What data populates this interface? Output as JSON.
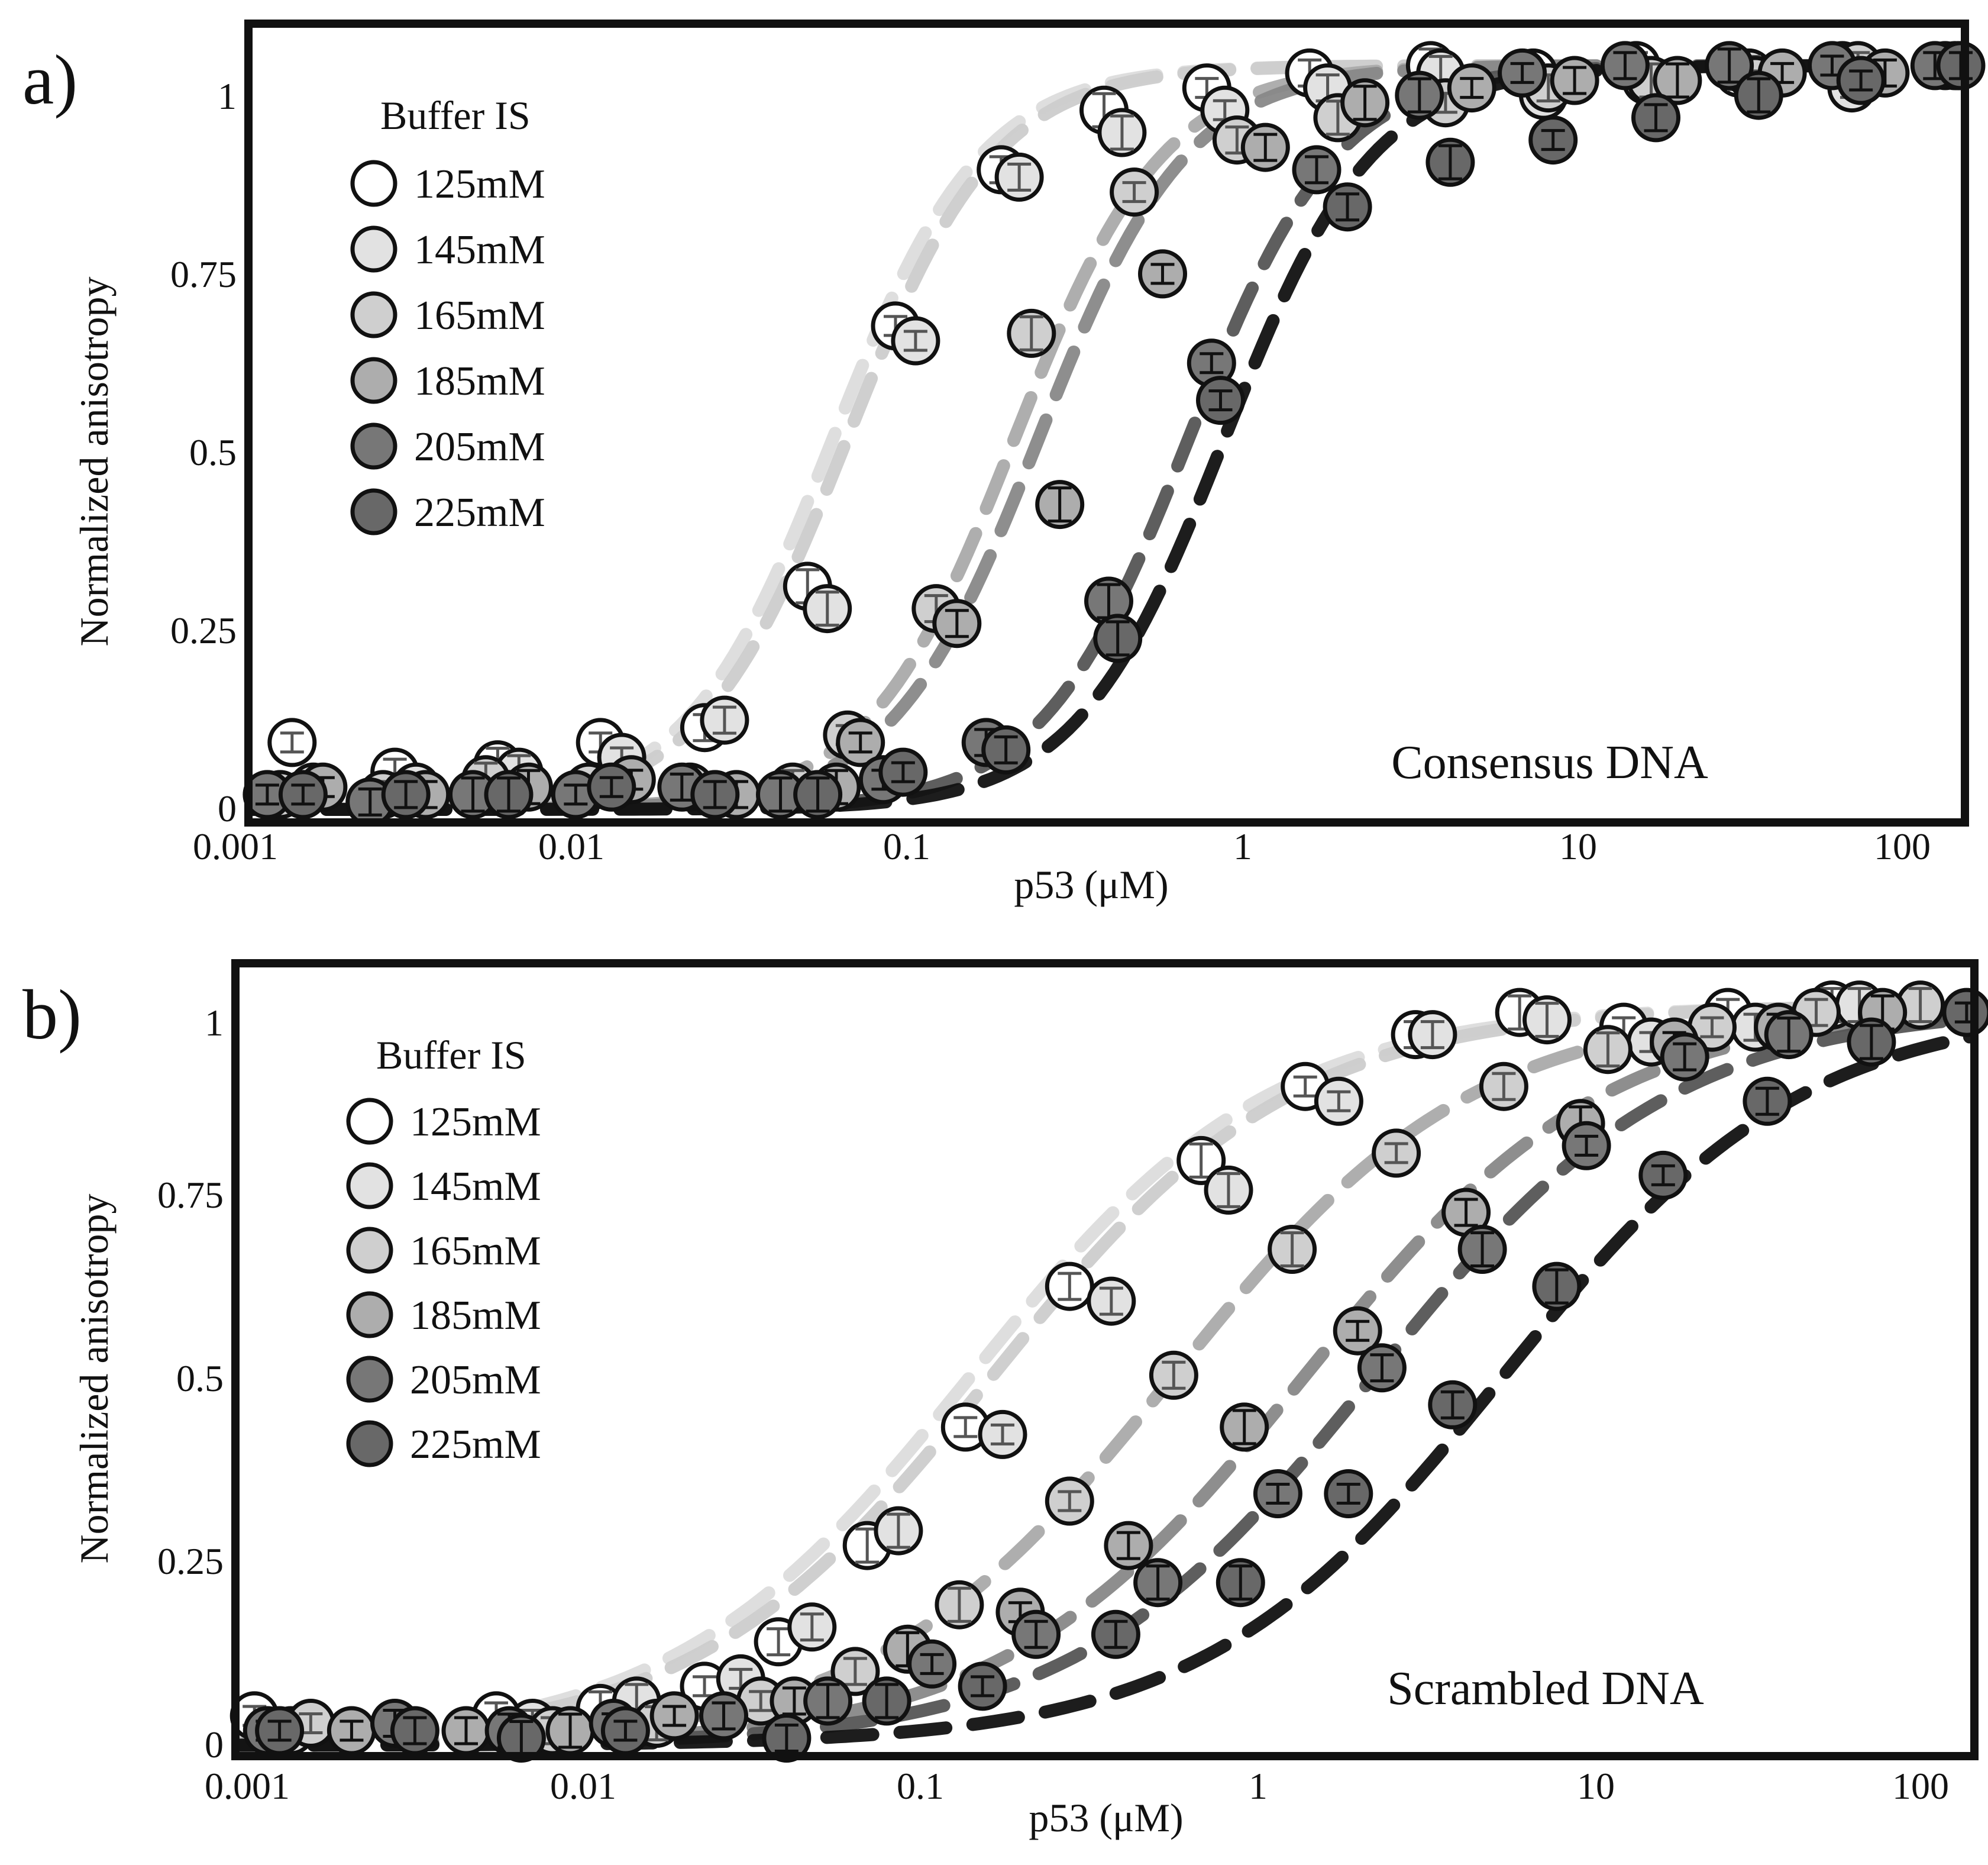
{
  "figure": {
    "panels": [
      {
        "id": "a",
        "panel_label": "a)",
        "annotation": "Consensus DNA",
        "legend_title": "Buffer IS",
        "xlabel": "p53 (μM)",
        "ylabel": "Normalized anisotropy",
        "x_ticks": [
          "0.001",
          "0.01",
          "0.1",
          "1",
          "10",
          "100"
        ],
        "y_ticks": [
          "0",
          "0.25",
          "0.5",
          "0.75",
          "1"
        ]
      },
      {
        "id": "b",
        "panel_label": "b)",
        "annotation": "Scrambled DNA",
        "legend_title": "Buffer IS",
        "xlabel": "p53 (μM)",
        "ylabel": "Normalized anisotropy",
        "x_ticks": [
          "0.001",
          "0.01",
          "0.1",
          "1",
          "10",
          "100"
        ],
        "y_ticks": [
          "0",
          "0.25",
          "0.5",
          "0.75",
          "1"
        ]
      }
    ]
  },
  "chart_data": [
    {
      "type": "scatter",
      "title": "Consensus DNA",
      "xlabel": "p53 (μM)",
      "ylabel": "Normalized anisotropy",
      "xscale": "log",
      "xlim": [
        0.001,
        100
      ],
      "ylim": [
        0,
        1.05
      ],
      "legend_title": "Buffer IS",
      "legend_position": "top-left",
      "series": [
        {
          "name": "125mM",
          "color": "#ffffff",
          "fit_color": "#dcdcdc",
          "kd": 0.05,
          "hill": 2.0,
          "x": [
            0.0013,
            0.0026,
            0.0052,
            0.0104,
            0.021,
            0.042,
            0.076,
            0.155,
            0.31,
            0.62,
            1.24,
            2.8,
            5.6,
            11.2,
            22.4,
            45,
            90
          ],
          "y": [
            0.09,
            0.05,
            0.06,
            0.09,
            0.11,
            0.3,
            0.65,
            0.86,
            0.94,
            0.97,
            0.99,
            1.0,
            0.99,
            1.0,
            0.99,
            1.0,
            1.0
          ]
        },
        {
          "name": "145mM",
          "color": "#e2e2e2",
          "fit_color": "#cccccc",
          "kd": 0.055,
          "hill": 2.0,
          "x": [
            0.0015,
            0.003,
            0.006,
            0.012,
            0.024,
            0.048,
            0.087,
            0.175,
            0.35,
            0.7,
            1.4,
            3.0,
            6.0,
            12,
            24,
            48,
            96
          ],
          "y": [
            0.03,
            0.03,
            0.05,
            0.07,
            0.12,
            0.27,
            0.63,
            0.85,
            0.91,
            0.94,
            0.97,
            0.99,
            0.96,
            0.98,
            0.99,
            0.97,
            1.0
          ]
        },
        {
          "name": "165mM",
          "color": "#cfcfcf",
          "fit_color": "#aaaaaa",
          "kd": 0.17,
          "hill": 2.0,
          "x": [
            0.0012,
            0.0024,
            0.0048,
            0.0096,
            0.019,
            0.038,
            0.055,
            0.1,
            0.19,
            0.38,
            0.76,
            1.5,
            3.1,
            6.2,
            12.4,
            25,
            50,
            98
          ],
          "y": [
            0.02,
            0.02,
            0.04,
            0.03,
            0.03,
            0.03,
            0.1,
            0.27,
            0.64,
            0.83,
            0.9,
            0.93,
            0.95,
            0.97,
            0.98,
            0.98,
            1.0,
            1.0
          ]
        },
        {
          "name": "185mM",
          "color": "#adadad",
          "fit_color": "#888888",
          "kd": 0.2,
          "hill": 2.0,
          "x": [
            0.0016,
            0.0032,
            0.0064,
            0.0128,
            0.026,
            0.051,
            0.06,
            0.115,
            0.23,
            0.46,
            0.92,
            1.8,
            3.7,
            7.4,
            14.8,
            30,
            60
          ],
          "y": [
            0.03,
            0.02,
            0.03,
            0.04,
            0.02,
            0.03,
            0.09,
            0.25,
            0.41,
            0.72,
            0.89,
            0.95,
            0.97,
            0.98,
            0.98,
            0.99,
            0.99
          ]
        },
        {
          "name": "205mM",
          "color": "#777777",
          "fit_color": "#555555",
          "kd": 0.55,
          "hill": 2.0,
          "x": [
            0.0011,
            0.0022,
            0.0044,
            0.0088,
            0.018,
            0.035,
            0.07,
            0.14,
            0.32,
            0.64,
            1.3,
            2.6,
            5.2,
            10.4,
            21,
            42,
            84
          ],
          "y": [
            0.02,
            0.01,
            0.02,
            0.02,
            0.03,
            0.02,
            0.04,
            0.09,
            0.28,
            0.6,
            0.86,
            0.96,
            0.99,
            1.0,
            1.0,
            1.0,
            1.0
          ]
        },
        {
          "name": "225mM",
          "color": "#686868",
          "fit_color": "#111111",
          "kd": 0.7,
          "hill": 2.0,
          "x": [
            0.0014,
            0.0028,
            0.0056,
            0.0112,
            0.0225,
            0.045,
            0.08,
            0.16,
            0.34,
            0.68,
            1.6,
            3.2,
            6.4,
            12.8,
            25.6,
            51,
            100
          ],
          "y": [
            0.02,
            0.02,
            0.02,
            0.03,
            0.02,
            0.02,
            0.05,
            0.08,
            0.23,
            0.55,
            0.81,
            0.87,
            0.9,
            0.93,
            0.96,
            0.98,
            1.0
          ]
        }
      ]
    },
    {
      "type": "scatter",
      "title": "Scrambled DNA",
      "xlabel": "p53 (μM)",
      "ylabel": "Normalized anisotropy",
      "xscale": "log",
      "xlim": [
        0.001,
        100
      ],
      "ylim": [
        0,
        1.05
      ],
      "legend_title": "Buffer IS",
      "legend_position": "top-left",
      "series": [
        {
          "name": "125mM",
          "color": "#ffffff",
          "fit_color": "#dcdcdc",
          "kd": 0.13,
          "hill": 1.0,
          "x": [
            0.0011,
            0.0055,
            0.011,
            0.022,
            0.036,
            0.065,
            0.125,
            0.25,
            0.6,
            1.2,
            2.5,
            5.0,
            10,
            20,
            40
          ],
          "y": [
            0.04,
            0.04,
            0.05,
            0.08,
            0.14,
            0.27,
            0.43,
            0.62,
            0.79,
            0.89,
            0.96,
            0.99,
            0.97,
            0.99,
            1.0
          ]
        },
        {
          "name": "145mM",
          "color": "#e2e2e2",
          "fit_color": "#cccccc",
          "kd": 0.15,
          "hill": 1.0,
          "x": [
            0.0014,
            0.007,
            0.014,
            0.028,
            0.045,
            0.08,
            0.16,
            0.33,
            0.72,
            1.5,
            2.8,
            6.0,
            12,
            24,
            48
          ],
          "y": [
            0.02,
            0.03,
            0.06,
            0.09,
            0.16,
            0.29,
            0.42,
            0.6,
            0.75,
            0.87,
            0.96,
            0.98,
            0.95,
            0.97,
            1.0
          ]
        },
        {
          "name": "165mM",
          "color": "#cfcfcf",
          "fit_color": "#aaaaaa",
          "kd": 0.5,
          "hill": 1.0,
          "x": [
            0.0016,
            0.008,
            0.016,
            0.032,
            0.06,
            0.12,
            0.25,
            0.5,
            1.1,
            2.2,
            4.5,
            9,
            18,
            36,
            72
          ],
          "y": [
            0.03,
            0.02,
            0.03,
            0.06,
            0.1,
            0.19,
            0.33,
            0.5,
            0.67,
            0.8,
            0.89,
            0.94,
            0.97,
            0.99,
            1.0
          ]
        },
        {
          "name": "185mM",
          "color": "#adadad",
          "fit_color": "#888888",
          "kd": 1.2,
          "hill": 1.0,
          "x": [
            0.0021,
            0.0045,
            0.009,
            0.018,
            0.04,
            0.085,
            0.18,
            0.37,
            0.8,
            1.7,
            3.5,
            7.5,
            14,
            28,
            56
          ],
          "y": [
            0.02,
            0.02,
            0.02,
            0.04,
            0.06,
            0.13,
            0.18,
            0.27,
            0.43,
            0.56,
            0.72,
            0.84,
            0.95,
            0.97,
            0.99
          ]
        },
        {
          "name": "205mM",
          "color": "#777777",
          "fit_color": "#555555",
          "kd": 1.9,
          "hill": 1.0,
          "x": [
            0.0012,
            0.0028,
            0.006,
            0.012,
            0.025,
            0.05,
            0.1,
            0.2,
            0.45,
            1.0,
            2.0,
            3.9,
            7.8,
            15,
            30
          ],
          "y": [
            0.02,
            0.03,
            0.02,
            0.03,
            0.04,
            0.06,
            0.11,
            0.15,
            0.22,
            0.34,
            0.51,
            0.67,
            0.81,
            0.93,
            0.96
          ]
        },
        {
          "name": "225mM",
          "color": "#686868",
          "fit_color": "#111111",
          "kd": 4.5,
          "hill": 1.0,
          "x": [
            0.0013,
            0.0032,
            0.0065,
            0.013,
            0.038,
            0.074,
            0.14,
            0.34,
            0.78,
            1.6,
            3.2,
            6.4,
            13,
            26,
            52,
            98
          ],
          "y": [
            0.02,
            0.02,
            0.01,
            0.02,
            0.01,
            0.06,
            0.08,
            0.15,
            0.22,
            0.34,
            0.46,
            0.62,
            0.77,
            0.87,
            0.95,
            0.99
          ]
        }
      ]
    }
  ]
}
